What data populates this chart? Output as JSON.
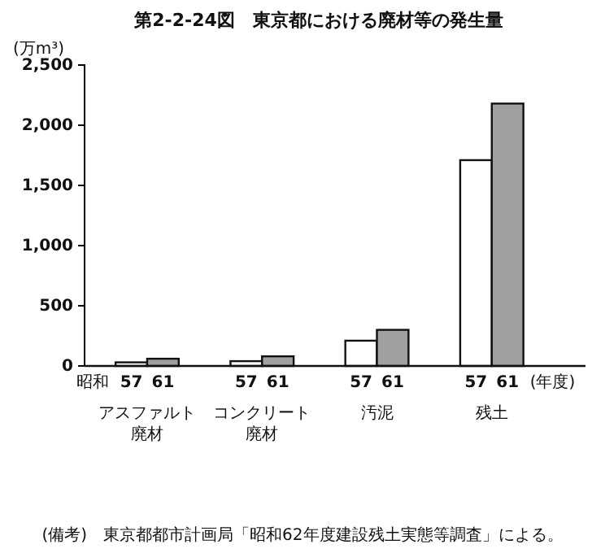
{
  "chart_data": {
    "type": "bar",
    "title": "第2-2-24図　東京都における廃材等の発生量",
    "ylabel": "(万m³)",
    "xlabel": "(年度)",
    "categories": [
      "アスファルト廃材",
      "コンクリート廃材",
      "汚泥",
      "残土"
    ],
    "series": [
      {
        "name": "57",
        "color": "#ffffff",
        "values": [
          30,
          40,
          210,
          1710
        ]
      },
      {
        "name": "61",
        "color": "#a0a0a0",
        "values": [
          60,
          80,
          300,
          2180
        ]
      }
    ],
    "ylim": [
      0,
      2500
    ],
    "yticks": [
      0,
      {
        "value": 500,
        "label": "500"
      },
      {
        "value": 1000,
        "label": "1,000"
      },
      {
        "value": 1500,
        "label": "1,500"
      },
      {
        "value": 2000,
        "label": "2,000"
      },
      {
        "value": 2500,
        "label": "2,500"
      }
    ],
    "grid": false,
    "legend": false,
    "annotations": [
      "昭和",
      "(備考)　東京都都市計画局「昭和62年度建設残土実態等調査」による。"
    ]
  }
}
